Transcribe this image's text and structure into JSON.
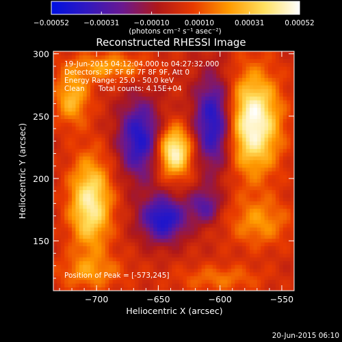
{
  "chart_data": {
    "type": "heatmap",
    "title": "Reconstructed RHESSI Image",
    "xlabel": "Heliocentric X (arcsec)",
    "ylabel": "Heliocentric Y (arcsec)",
    "xlim": [
      -735,
      -540
    ],
    "ylim": [
      110,
      302
    ],
    "x_ticks": [
      -700,
      -650,
      -600,
      -550
    ],
    "y_ticks": [
      150,
      200,
      250,
      300
    ],
    "x_tick_labels": [
      "−700",
      "−650",
      "−600",
      "−550"
    ],
    "y_tick_labels": [
      "150",
      "200",
      "250",
      "300"
    ],
    "colorbar": {
      "min": -0.00052,
      "max": 0.00052,
      "ticks": [
        -0.00052,
        -0.00031,
        -0.0001,
        0.0001,
        0.00031,
        0.00052
      ],
      "tick_labels": [
        "−0.00052",
        "−0.00031",
        "−0.00010",
        "0.00010",
        "0.00031",
        "0.00052"
      ],
      "unit_label": "(photons cm⁻² s⁻¹ asec⁻²)",
      "colors": [
        "#0010e0",
        "#3018c0",
        "#6a1890",
        "#b01818",
        "#e83a00",
        "#ff9a00",
        "#ffe060",
        "#ffffff"
      ]
    },
    "annotations": [
      "19-Jun-2015 04:12:04.000 to 04:27:32.000",
      "Detectors: 3F 5F 6F 7F 8F 9F, Att 0",
      "Energy Range: 25.0 - 50.0 keV",
      "Clean      Total counts: 4.15E+04",
      "Position of Peak = [-573,245]"
    ],
    "peak": {
      "x": -573,
      "y": 245
    },
    "blobs": [
      {
        "type": "positive",
        "x": -573,
        "y": 245,
        "sx": 15,
        "sy": 28,
        "amp": 1.0
      },
      {
        "type": "positive",
        "x": -637,
        "y": 222,
        "sx": 10,
        "sy": 14,
        "amp": 0.95
      },
      {
        "type": "positive",
        "x": -705,
        "y": 180,
        "sx": 12,
        "sy": 26,
        "amp": 0.85
      },
      {
        "type": "positive",
        "x": -720,
        "y": 265,
        "sx": 10,
        "sy": 15,
        "amp": 0.55
      },
      {
        "type": "positive",
        "x": -690,
        "y": 290,
        "sx": 22,
        "sy": 8,
        "amp": 0.45
      },
      {
        "type": "positive",
        "x": -568,
        "y": 165,
        "sx": 18,
        "sy": 14,
        "amp": 0.4
      },
      {
        "type": "positive",
        "x": -705,
        "y": 125,
        "sx": 20,
        "sy": 10,
        "amp": 0.35
      },
      {
        "type": "positive",
        "x": -600,
        "y": 120,
        "sx": 25,
        "sy": 8,
        "amp": 0.3
      },
      {
        "type": "negative",
        "x": -665,
        "y": 232,
        "sx": 12,
        "sy": 22,
        "amp": 0.8
      },
      {
        "type": "negative",
        "x": -646,
        "y": 168,
        "sx": 13,
        "sy": 13,
        "amp": 0.85
      },
      {
        "type": "negative",
        "x": -605,
        "y": 245,
        "sx": 11,
        "sy": 26,
        "amp": 0.85
      },
      {
        "type": "negative",
        "x": -612,
        "y": 178,
        "sx": 9,
        "sy": 10,
        "amp": 0.5
      }
    ]
  },
  "footer": {
    "date": "20-Jun-2015 06:10"
  }
}
